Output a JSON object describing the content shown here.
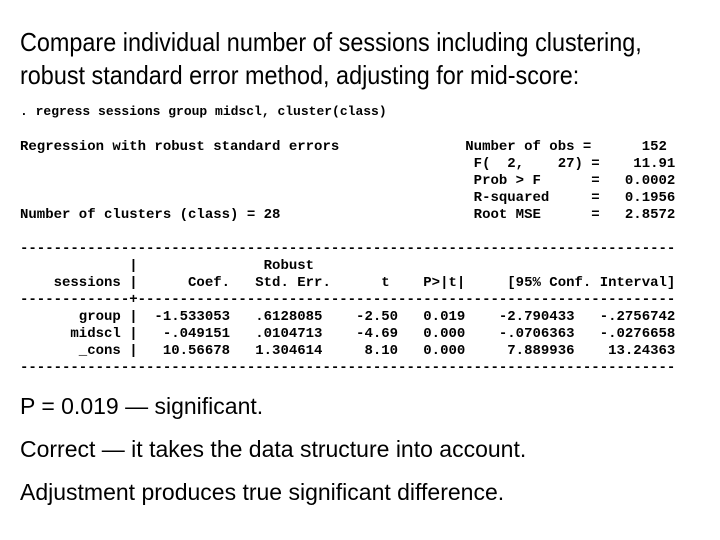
{
  "slide": {
    "colors": {
      "background": "#ffffff",
      "text": "#000000"
    },
    "title_lines": [
      "Compare individual number of sessions including clustering,",
      "robust standard error method, adjusting for mid-score:"
    ],
    "command": ". regress sessions group midscl, cluster(class)",
    "stata": {
      "lines": [
        "Regression with robust standard errors               Number of obs =      152",
        "                                                      F(  2,    27) =    11.91",
        "                                                      Prob > F      =   0.0002",
        "                                                      R-squared     =   0.1956",
        "Number of clusters (class) = 28                       Root MSE      =   2.8572",
        "",
        "------------------------------------------------------------------------------",
        "             |               Robust",
        "    sessions |      Coef.   Std. Err.      t    P>|t|     [95% Conf. Interval]",
        "-------------+----------------------------------------------------------------",
        "       group |  -1.533053   .6128085    -2.50   0.019    -2.790433   -.2756742",
        "      midscl |   -.049151   .0104713    -4.69   0.000    -.0706363   -.0276658",
        "       _cons |   10.56678   1.304614     8.10   0.000     7.889936    13.24363",
        "------------------------------------------------------------------------------"
      ]
    },
    "conclusions": [
      "P = 0.019 — significant.",
      "Correct — it takes the data structure into account.",
      "Adjustment produces true significant difference."
    ]
  },
  "regression": {
    "command": "regress sessions group midscl, cluster(class)",
    "description": "Regression with robust standard errors",
    "number_of_obs": 152,
    "F_df1": 2,
    "F_df2": 27,
    "F": 11.91,
    "prob_gt_F": 0.0002,
    "r_squared": 0.1956,
    "root_mse": 2.8572,
    "number_of_clusters": 28,
    "cluster_var": "class",
    "dependent_var": "sessions",
    "table": {
      "columns": [
        "sessions",
        "Coef.",
        "Robust Std. Err.",
        "t",
        "P>|t|",
        "[95% Conf. Interval]"
      ],
      "rows": [
        {
          "var": "group",
          "coef": -1.533053,
          "robust_std_err": 0.6128085,
          "t": -2.5,
          "p": 0.019,
          "ci_low": -2.790433,
          "ci_high": -0.2756742
        },
        {
          "var": "midscl",
          "coef": -0.049151,
          "robust_std_err": 0.0104713,
          "t": -4.69,
          "p": 0.0,
          "ci_low": -0.0706363,
          "ci_high": -0.0276658
        },
        {
          "var": "_cons",
          "coef": 10.56678,
          "robust_std_err": 1.304614,
          "t": 8.1,
          "p": 0.0,
          "ci_low": 7.889936,
          "ci_high": 13.24363
        }
      ]
    }
  }
}
